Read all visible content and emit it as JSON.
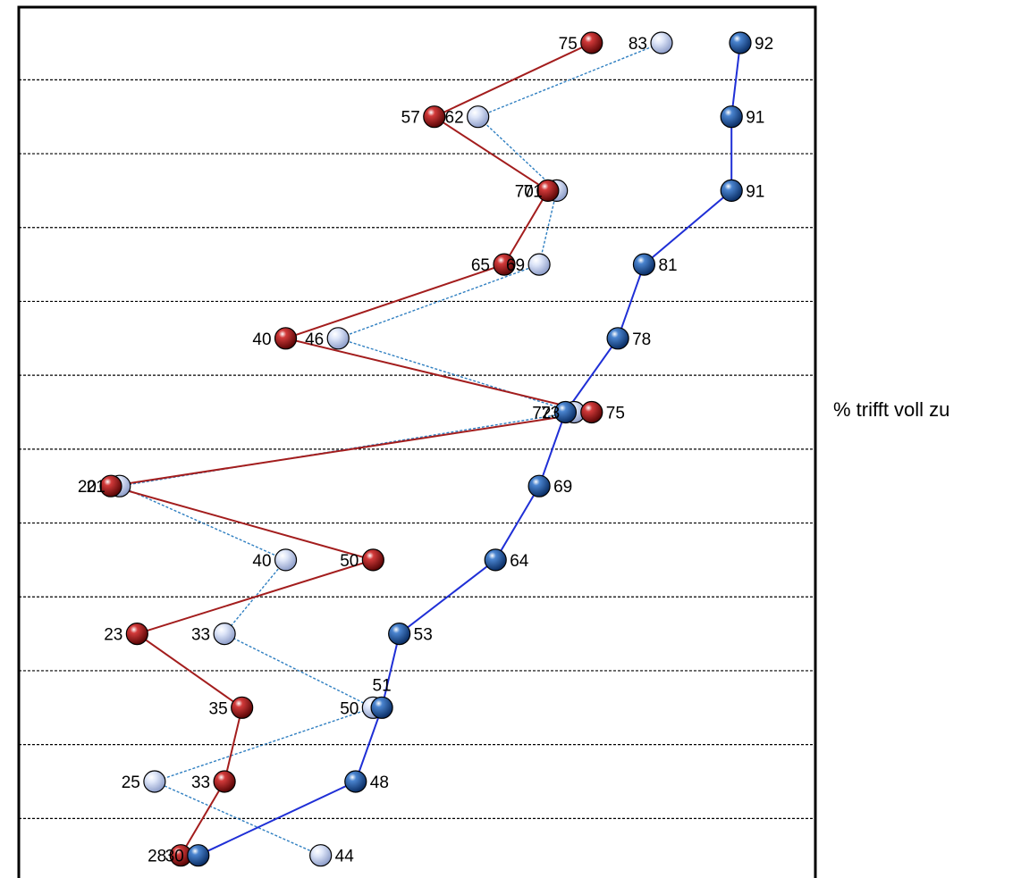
{
  "chart_data": {
    "type": "line",
    "orientation": "horizontal",
    "side_label": "% trifft voll zu",
    "xlim": [
      10,
      100
    ],
    "grid": "horizontal-dashed",
    "rows": 12,
    "series": [
      {
        "color": "#1a4f9c",
        "line_color": "#1f2fd6",
        "line_style": "solid",
        "values": [
          92,
          91,
          91,
          81,
          78,
          72,
          69,
          64,
          53,
          51,
          48,
          30
        ]
      },
      {
        "color": "#c8d4f0",
        "line_color": "#2f7fc1",
        "line_style": "dotted",
        "values": [
          83,
          62,
          71,
          69,
          46,
          73,
          21,
          40,
          33,
          50,
          25,
          44
        ]
      },
      {
        "color": "#a81414",
        "line_color": "#a31d1d",
        "line_style": "solid",
        "values": [
          75,
          57,
          70,
          65,
          40,
          75,
          20,
          50,
          23,
          35,
          33,
          28
        ]
      }
    ]
  }
}
